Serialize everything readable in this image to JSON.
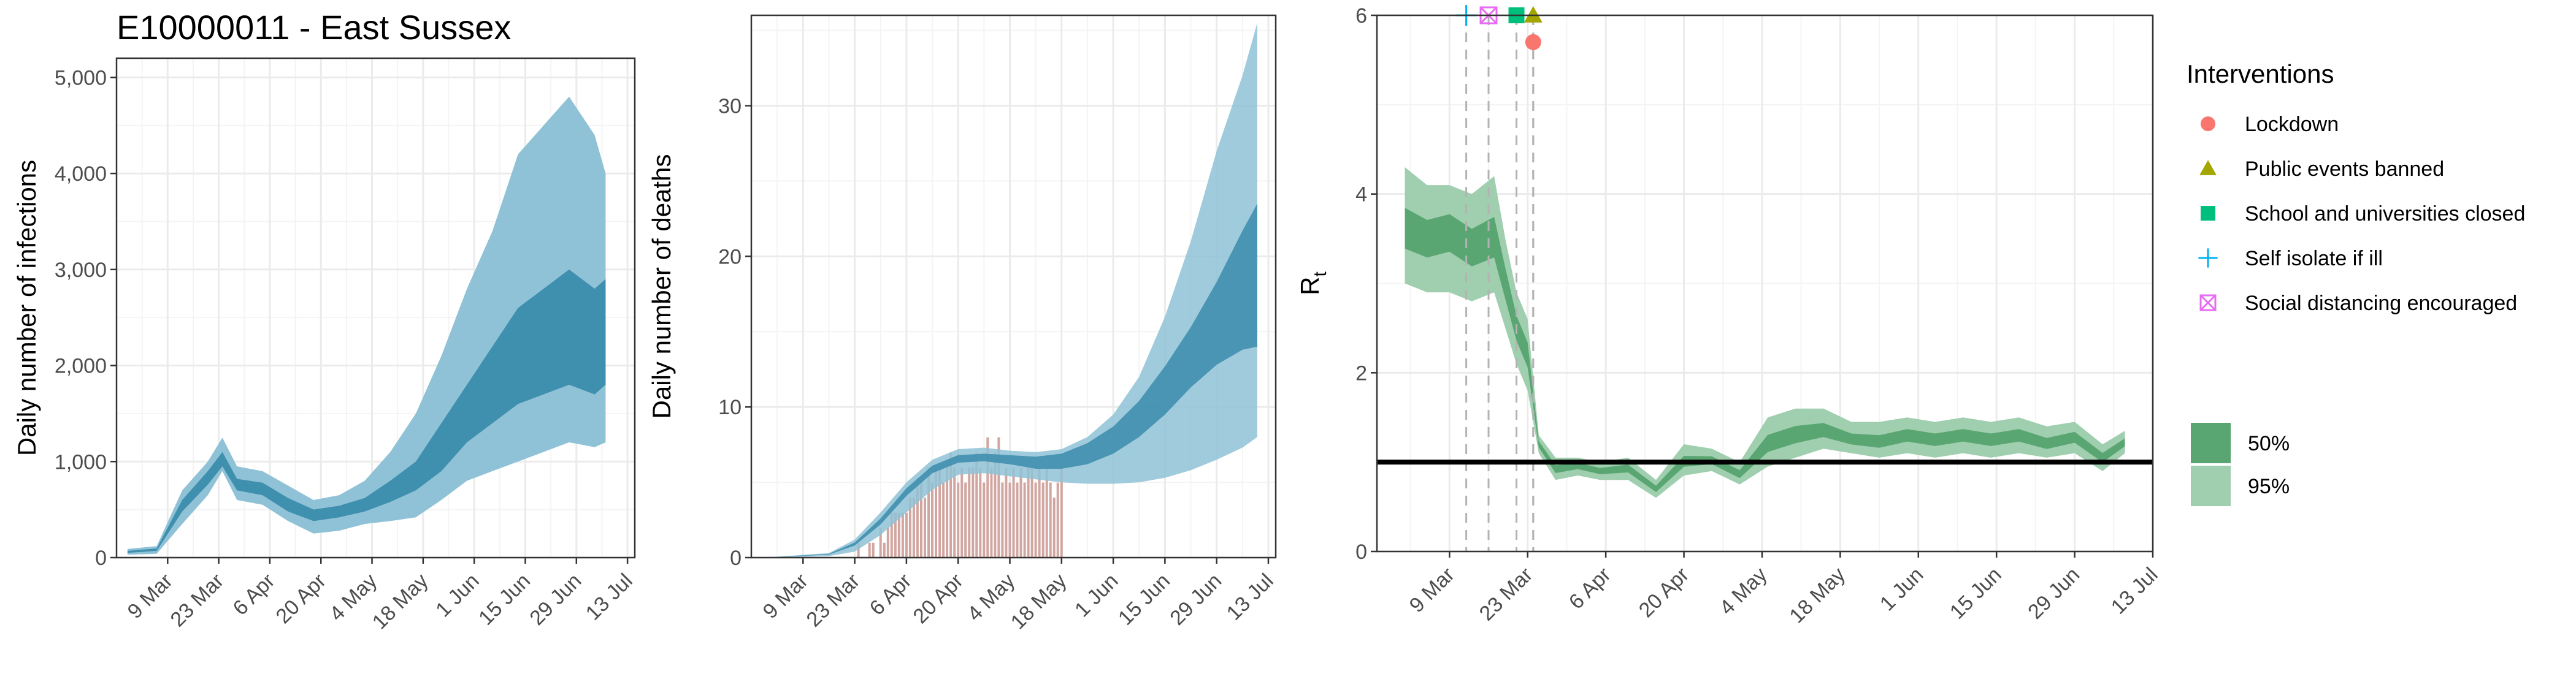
{
  "page": {
    "title": "E10000011 - East Sussex"
  },
  "colors": {
    "infection_fill_95": "#8fc2d6",
    "infection_fill_50": "#3f8fae",
    "death_bar": "#d2a6a0",
    "rt_fill_95": "#9fcfae",
    "rt_fill_50": "#5aa673",
    "grid": "#ebebeb",
    "lockdown": "#f8766d",
    "public_events": "#a3a500",
    "schools": "#00bf7d",
    "self_isolate": "#00b0f6",
    "social_distancing": "#e76bf3"
  },
  "chart_data": [
    {
      "type": "area",
      "panel": "infections",
      "xlabel": "",
      "ylabel": "Daily number of infections",
      "x_tick_labels": [
        "9 Mar",
        "23 Mar",
        "6 Apr",
        "20 Apr",
        "4 May",
        "18 May",
        "1 Jun",
        "15 Jun",
        "29 Jun",
        "13 Jul"
      ],
      "y_tick_labels": [
        "0",
        "1,000",
        "2,000",
        "3,000",
        "4,000",
        "5,000"
      ],
      "ylim": [
        0,
        5200
      ],
      "x": [
        "2020-02-27",
        "2020-03-06",
        "2020-03-13",
        "2020-03-20",
        "2020-03-24",
        "2020-03-28",
        "2020-04-04",
        "2020-04-11",
        "2020-04-18",
        "2020-04-25",
        "2020-05-02",
        "2020-05-09",
        "2020-05-16",
        "2020-05-23",
        "2020-05-30",
        "2020-06-06",
        "2020-06-13",
        "2020-06-20",
        "2020-06-27",
        "2020-07-04",
        "2020-07-07"
      ],
      "series": [
        {
          "name": "95%",
          "low": [
            30,
            40,
            350,
            650,
            900,
            600,
            550,
            380,
            250,
            280,
            350,
            380,
            420,
            600,
            800,
            900,
            1000,
            1100,
            1200,
            1150,
            1200
          ],
          "high": [
            90,
            120,
            700,
            1000,
            1250,
            950,
            900,
            750,
            600,
            650,
            800,
            1100,
            1500,
            2100,
            2800,
            3400,
            4200,
            4500,
            4800,
            4400,
            4000
          ]
        },
        {
          "name": "50%",
          "low": [
            50,
            70,
            480,
            760,
            950,
            700,
            650,
            480,
            380,
            420,
            480,
            580,
            700,
            900,
            1200,
            1400,
            1600,
            1700,
            1800,
            1700,
            1800
          ],
          "high": [
            70,
            95,
            600,
            900,
            1100,
            820,
            780,
            620,
            500,
            540,
            620,
            800,
            1000,
            1400,
            1800,
            2200,
            2600,
            2800,
            3000,
            2800,
            2900
          ]
        }
      ]
    },
    {
      "type": "bar",
      "panel": "deaths",
      "xlabel": "",
      "ylabel": "Daily number of deaths",
      "x_tick_labels": [
        "9 Mar",
        "23 Mar",
        "6 Apr",
        "20 Apr",
        "4 May",
        "18 May",
        "1 Jun",
        "15 Jun",
        "29 Jun",
        "13 Jul"
      ],
      "y_tick_labels": [
        "0",
        "10",
        "20",
        "30"
      ],
      "ylim": [
        0,
        36
      ],
      "observed_deaths": {
        "start": "2020-03-24",
        "values": [
          1,
          0,
          0,
          1,
          1,
          0,
          2,
          1,
          2,
          3,
          3,
          3,
          3,
          3,
          4,
          4,
          5,
          5,
          4,
          6,
          5,
          6,
          6,
          5,
          6,
          7,
          6,
          5,
          6,
          5,
          6,
          6,
          7,
          6,
          5,
          8,
          6,
          7,
          8,
          5,
          6,
          5,
          6,
          5,
          6,
          5,
          6,
          6,
          5,
          6,
          5,
          6,
          5,
          4,
          5,
          6
        ]
      },
      "band_x": [
        "2020-03-01",
        "2020-03-16",
        "2020-03-23",
        "2020-03-30",
        "2020-04-06",
        "2020-04-13",
        "2020-04-20",
        "2020-04-27",
        "2020-05-04",
        "2020-05-11",
        "2020-05-18",
        "2020-05-25",
        "2020-06-01",
        "2020-06-08",
        "2020-06-15",
        "2020-06-22",
        "2020-06-29",
        "2020-07-06",
        "2020-07-10"
      ],
      "series": [
        {
          "name": "95%",
          "low": [
            0,
            0.1,
            0.4,
            1.5,
            3,
            4.5,
            5.5,
            5.6,
            5.4,
            5.2,
            5,
            4.9,
            4.9,
            5,
            5.3,
            5.8,
            6.5,
            7.3,
            8
          ],
          "high": [
            0.05,
            0.3,
            1.2,
            3,
            5,
            6.5,
            7.2,
            7.3,
            7.1,
            7,
            7.2,
            8,
            9.5,
            12,
            16,
            21,
            27,
            32,
            35.5
          ]
        },
        {
          "name": "50%",
          "low": [
            0.02,
            0.2,
            0.8,
            2.2,
            4.1,
            5.6,
            6.3,
            6.4,
            6.2,
            5.9,
            5.9,
            6.2,
            6.9,
            8,
            9.5,
            11.3,
            12.8,
            13.8,
            14
          ]
        },
        {
          "name": "50%-high",
          "high": [
            0.03,
            0.25,
            1,
            2.6,
            4.6,
            6.1,
            6.8,
            6.9,
            6.8,
            6.7,
            6.9,
            7.6,
            8.7,
            10.4,
            12.7,
            15.3,
            18.3,
            21.7,
            23.5
          ]
        }
      ]
    },
    {
      "type": "line",
      "panel": "reproduction-number",
      "xlabel": "",
      "ylabel": "R",
      "ylabel_subscript": "t",
      "x_tick_labels": [
        "9 Mar",
        "23 Mar",
        "6 Apr",
        "20 Apr",
        "4 May",
        "18 May",
        "1 Jun",
        "15 Jun",
        "29 Jun",
        "13 Jul"
      ],
      "y_tick_labels": [
        "0",
        "2",
        "4",
        "6"
      ],
      "ylim": [
        0,
        6
      ],
      "reference_line": 1,
      "x": [
        "2020-03-01",
        "2020-03-05",
        "2020-03-09",
        "2020-03-13",
        "2020-03-17",
        "2020-03-19",
        "2020-03-21",
        "2020-03-23",
        "2020-03-25",
        "2020-03-28",
        "2020-04-01",
        "2020-04-05",
        "2020-04-10",
        "2020-04-15",
        "2020-04-20",
        "2020-04-25",
        "2020-04-30",
        "2020-05-05",
        "2020-05-10",
        "2020-05-15",
        "2020-05-20",
        "2020-05-25",
        "2020-05-30",
        "2020-06-04",
        "2020-06-09",
        "2020-06-14",
        "2020-06-19",
        "2020-06-24",
        "2020-06-29",
        "2020-07-04",
        "2020-07-08"
      ],
      "series": [
        {
          "name": "95%",
          "low": [
            3.0,
            2.9,
            2.9,
            2.8,
            2.9,
            2.5,
            2.1,
            1.8,
            1.1,
            0.8,
            0.85,
            0.8,
            0.8,
            0.6,
            0.85,
            0.9,
            0.75,
            0.95,
            1.05,
            1.15,
            1.1,
            1.05,
            1.1,
            1.05,
            1.1,
            1.05,
            1.1,
            1.05,
            1.1,
            0.9,
            1.1
          ],
          "high": [
            4.3,
            4.1,
            4.1,
            4.0,
            4.2,
            3.5,
            2.9,
            2.6,
            1.3,
            1.05,
            1.05,
            1.0,
            1.05,
            0.8,
            1.2,
            1.15,
            1.0,
            1.5,
            1.6,
            1.6,
            1.45,
            1.45,
            1.5,
            1.45,
            1.5,
            1.45,
            1.5,
            1.4,
            1.45,
            1.2,
            1.35
          ]
        },
        {
          "name": "50%",
          "values": [
            3.6,
            3.5,
            3.6,
            3.4,
            3.5,
            3.0,
            2.5,
            2.2,
            1.2,
            0.92,
            0.96,
            0.9,
            0.93,
            0.7,
            1.0,
            1.02,
            0.86,
            1.2,
            1.3,
            1.35,
            1.25,
            1.22,
            1.3,
            1.25,
            1.3,
            1.25,
            1.3,
            1.2,
            1.28,
            1.05,
            1.22
          ]
        }
      ],
      "interventions": [
        {
          "name": "Self isolate if ill",
          "date": "2020-03-12",
          "rt": 6.0,
          "shape": "plus",
          "color": "#00b0f6"
        },
        {
          "name": "Social distancing encouraged",
          "date": "2020-03-16",
          "rt": 6.0,
          "shape": "boxx",
          "color": "#e76bf3"
        },
        {
          "name": "School and universities closed",
          "date": "2020-03-21",
          "rt": 6.0,
          "shape": "square",
          "color": "#00bf7d"
        },
        {
          "name": "Public events banned",
          "date": "2020-03-24",
          "rt": 6.0,
          "shape": "triangle",
          "color": "#a3a500"
        },
        {
          "name": "Lockdown",
          "date": "2020-03-24",
          "rt": 5.7,
          "shape": "circle",
          "color": "#f8766d"
        }
      ]
    }
  ],
  "legend": {
    "interventions_title": "Interventions",
    "interventions": [
      {
        "label": "Lockdown",
        "shape": "circle",
        "color": "#f8766d"
      },
      {
        "label": "Public events banned",
        "shape": "triangle",
        "color": "#a3a500"
      },
      {
        "label": "School and universities closed",
        "shape": "square",
        "color": "#00bf7d"
      },
      {
        "label": "Self isolate if ill",
        "shape": "plus",
        "color": "#00b0f6"
      },
      {
        "label": "Social distancing encouraged",
        "shape": "boxx",
        "color": "#e76bf3"
      }
    ],
    "bands": [
      {
        "label": "50%",
        "color": "#5aa673"
      },
      {
        "label": "95%",
        "color": "#9fcfae"
      }
    ]
  }
}
